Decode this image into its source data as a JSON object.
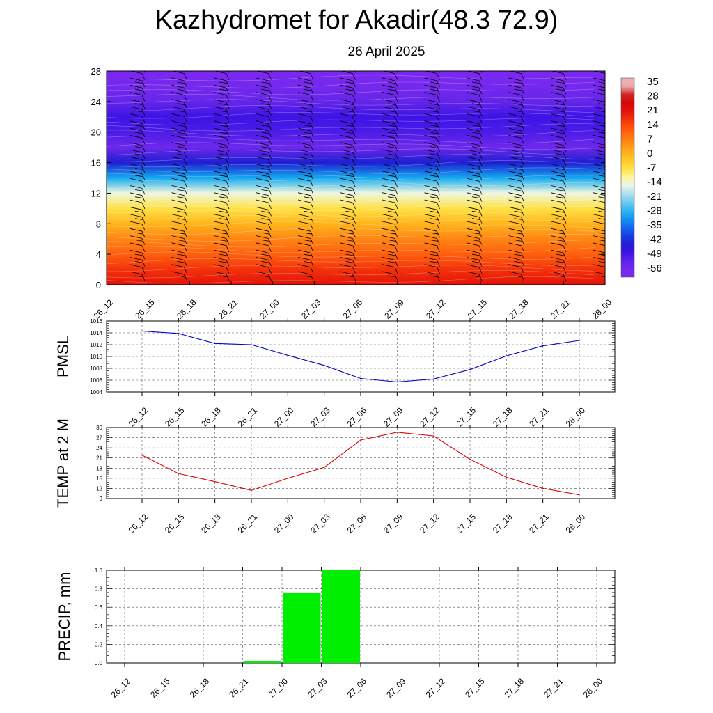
{
  "header": {
    "title": "Kazhydromet for Akadir(48.3 72.9)",
    "subtitle": "26 April 2025"
  },
  "chart_data": [
    {
      "type": "heatmap",
      "title": "",
      "x_ticks": [
        "26_12",
        "26_15",
        "26_18",
        "26_21",
        "27_00",
        "27_03",
        "27_06",
        "27_09",
        "27_12",
        "27_15",
        "27_18",
        "27_21",
        "28_00"
      ],
      "y_ticks": [
        0,
        4,
        8,
        12,
        16,
        20,
        24,
        28
      ],
      "ylim": [
        0,
        28
      ],
      "colorbar_labels": [
        35,
        28,
        21,
        14,
        7,
        0,
        -7,
        -14,
        -21,
        -28,
        -35,
        -42,
        -49,
        -56
      ],
      "temperature_profile": {
        "levels": [
          0,
          2,
          4,
          6,
          8,
          10,
          12,
          14,
          16,
          18,
          20,
          22,
          24,
          26,
          28
        ],
        "values": [
          25,
          20,
          14,
          9,
          2,
          -6,
          -14,
          -30,
          -45,
          -56,
          -52,
          -50,
          -55,
          -60,
          -62
        ]
      },
      "wind_barbs": true
    },
    {
      "type": "line",
      "ylabel": "PMSL",
      "x": [
        "26_12",
        "26_15",
        "26_18",
        "26_21",
        "27_00",
        "27_03",
        "27_06",
        "27_09",
        "27_12",
        "27_15",
        "27_18",
        "27_21",
        "28_00"
      ],
      "values": [
        1014.3,
        1013.9,
        1012.2,
        1012.0,
        1010.2,
        1008.5,
        1006.3,
        1005.7,
        1006.2,
        1007.8,
        1010.1,
        1011.8,
        1012.7
      ],
      "ylim": [
        1004,
        1016
      ],
      "y_ticks": [
        1004,
        1006,
        1008,
        1010,
        1012,
        1014,
        1016
      ],
      "color": "#0000cc",
      "grid": true
    },
    {
      "type": "line",
      "ylabel": "TEMP at 2 M",
      "x": [
        "26_12",
        "26_15",
        "26_18",
        "26_21",
        "27_00",
        "27_03",
        "27_06",
        "27_09",
        "27_12",
        "27_15",
        "27_18",
        "27_21",
        "28_00"
      ],
      "values": [
        21.8,
        16.4,
        14.0,
        11.4,
        15.0,
        18.2,
        26.3,
        28.6,
        27.5,
        20.6,
        15.3,
        12.0,
        10.1
      ],
      "ylim": [
        9,
        30
      ],
      "y_ticks": [
        9,
        12,
        15,
        18,
        21,
        24,
        27,
        30
      ],
      "color": "#dd0000",
      "grid": true
    },
    {
      "type": "bar",
      "ylabel": "PRECIP, mm",
      "categories": [
        "26_12",
        "26_15",
        "26_18",
        "26_21",
        "27_00",
        "27_03",
        "27_06",
        "27_09",
        "27_12",
        "27_15",
        "27_18",
        "27_21",
        "28_00"
      ],
      "values": [
        0,
        0,
        0,
        0,
        0.02,
        0.76,
        1.0,
        0,
        0,
        0,
        0,
        0,
        0
      ],
      "ylim": [
        0,
        1.0
      ],
      "y_ticks": [
        "0.0",
        "0.2",
        "0.4",
        "0.6",
        "0.8",
        "1.0"
      ],
      "color": "#00ee00",
      "grid": true
    }
  ]
}
